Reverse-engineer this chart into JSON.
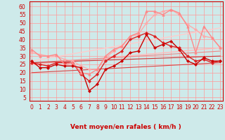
{
  "title": "",
  "xlabel": "Vent moyen/en rafales ( km/h )",
  "ylabel": "",
  "background_color": "#ceeaea",
  "grid_color": "#ff9999",
  "x_ticks": [
    0,
    1,
    2,
    3,
    4,
    5,
    6,
    7,
    8,
    9,
    10,
    11,
    12,
    13,
    14,
    15,
    16,
    17,
    18,
    19,
    20,
    21,
    22,
    23
  ],
  "y_ticks": [
    5,
    10,
    15,
    20,
    25,
    30,
    35,
    40,
    45,
    50,
    55,
    60
  ],
  "ylim": [
    3,
    63
  ],
  "xlim": [
    -0.3,
    23.3
  ],
  "lines": [
    {
      "x": [
        0,
        1,
        2,
        3,
        4,
        5,
        6,
        7,
        8,
        9,
        10,
        11,
        12,
        13,
        14,
        15,
        16,
        17,
        18,
        19,
        20,
        21,
        22,
        23
      ],
      "y": [
        27,
        23,
        23,
        25,
        24,
        24,
        23,
        9,
        13,
        22,
        24,
        27,
        32,
        33,
        43,
        35,
        37,
        39,
        34,
        27,
        25,
        29,
        27,
        27
      ],
      "color": "#cc0000",
      "lw": 1.0,
      "marker": "D",
      "ms": 2.0,
      "zorder": 6
    },
    {
      "x": [
        0,
        1,
        2,
        3,
        4,
        5,
        6,
        7,
        8,
        9,
        10,
        11,
        12,
        13,
        14,
        15,
        16,
        17,
        18,
        19,
        20,
        21,
        22,
        23
      ],
      "y": [
        26,
        25,
        24,
        26,
        26,
        26,
        19,
        15,
        19,
        27,
        30,
        33,
        40,
        42,
        44,
        42,
        38,
        36,
        35,
        30,
        27,
        28,
        26,
        27
      ],
      "color": "#dd2222",
      "lw": 1.0,
      "marker": "D",
      "ms": 2.0,
      "zorder": 5
    },
    {
      "x": [
        0,
        1,
        2,
        3,
        4,
        5,
        6,
        7,
        8,
        9,
        10,
        11,
        12,
        13,
        14,
        15,
        16,
        17,
        18,
        19,
        20,
        21,
        22,
        23
      ],
      "y": [
        34,
        30,
        30,
        31,
        25,
        26,
        20,
        19,
        22,
        30,
        34,
        36,
        42,
        44,
        57,
        57,
        55,
        58,
        56,
        48,
        32,
        48,
        41,
        35
      ],
      "color": "#ff8888",
      "lw": 1.0,
      "marker": "^",
      "ms": 2.5,
      "zorder": 5
    },
    {
      "x": [
        0,
        1,
        2,
        3,
        4,
        5,
        6,
        7,
        8,
        9,
        10,
        11,
        12,
        13,
        14,
        15,
        16,
        17,
        18,
        19,
        20,
        21,
        22,
        23
      ],
      "y": [
        32,
        31,
        30,
        30,
        28,
        27,
        24,
        22,
        22,
        29,
        33,
        36,
        42,
        43,
        50,
        55,
        57,
        58,
        55,
        49,
        46,
        42,
        41,
        35
      ],
      "color": "#ffaaaa",
      "lw": 1.0,
      "marker": "D",
      "ms": 2.0,
      "zorder": 4
    },
    {
      "x": [
        0,
        23
      ],
      "y": [
        25,
        35
      ],
      "color": "#ffbbbb",
      "lw": 1.0,
      "marker": null,
      "ms": 0,
      "zorder": 2
    },
    {
      "x": [
        0,
        23
      ],
      "y": [
        27,
        47
      ],
      "color": "#ffcccc",
      "lw": 1.0,
      "marker": null,
      "ms": 0,
      "zorder": 2
    },
    {
      "x": [
        0,
        23
      ],
      "y": [
        26,
        33
      ],
      "color": "#ee8888",
      "lw": 0.8,
      "marker": null,
      "ms": 0,
      "zorder": 2
    },
    {
      "x": [
        0,
        23
      ],
      "y": [
        26,
        30
      ],
      "color": "#cc3333",
      "lw": 0.8,
      "marker": null,
      "ms": 0,
      "zorder": 2
    },
    {
      "x": [
        0,
        23
      ],
      "y": [
        20,
        26
      ],
      "color": "#dd4444",
      "lw": 0.8,
      "marker": null,
      "ms": 0,
      "zorder": 2
    }
  ],
  "arrow_chars": [
    "→",
    "→",
    "→",
    "↗",
    "↗",
    "↗",
    "↗",
    "↑",
    "↗",
    "↑",
    "↑",
    "↑",
    "↑",
    "↑",
    "↑",
    "↑",
    "↑",
    "↑",
    "↑",
    "↑",
    "↑",
    "↑",
    "↑",
    "↑"
  ],
  "tick_label_color": "#cc0000",
  "xlabel_color": "#cc0000",
  "xlabel_fontsize": 6.5
}
